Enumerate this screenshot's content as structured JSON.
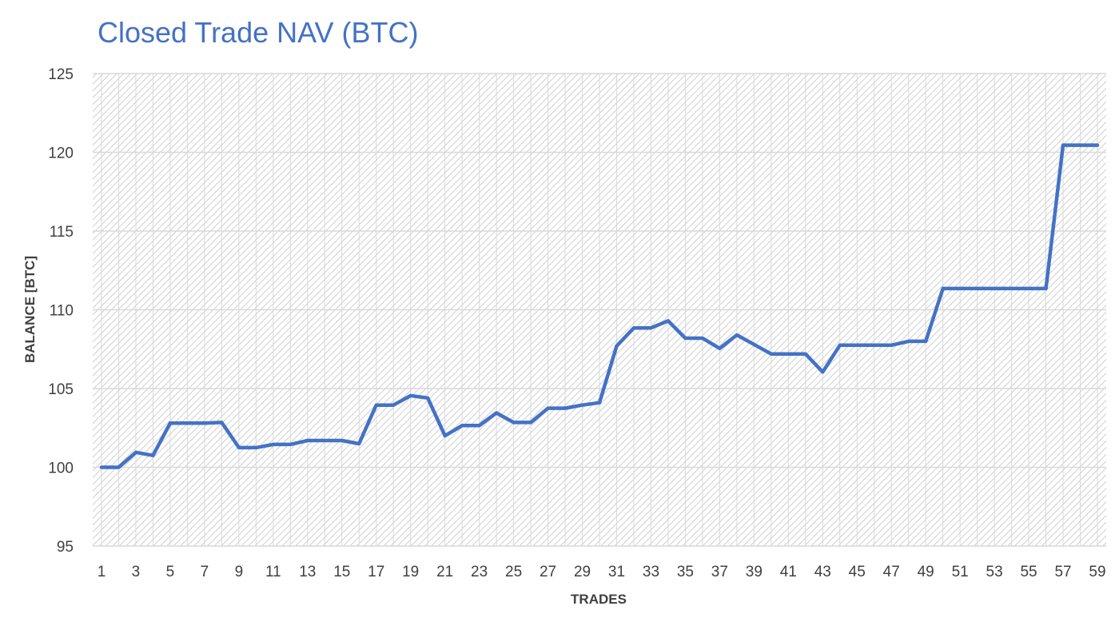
{
  "chart_data": {
    "type": "line",
    "title": "Closed Trade NAV (BTC)",
    "xlabel": "TRADES",
    "ylabel": "BALANCE [BTC]",
    "ylim": [
      95,
      125
    ],
    "yticks": [
      95,
      100,
      105,
      110,
      115,
      120,
      125
    ],
    "xlim": [
      1,
      59
    ],
    "xticks": [
      1,
      3,
      5,
      7,
      9,
      11,
      13,
      15,
      17,
      19,
      21,
      23,
      25,
      27,
      29,
      31,
      33,
      35,
      37,
      39,
      41,
      43,
      45,
      47,
      49,
      51,
      53,
      55,
      57,
      59
    ],
    "grid": true,
    "legend": "none",
    "colors": {
      "line": "#4472c4",
      "title": "#4472c4",
      "grid": "#d9d9d9",
      "hatch": "#c8c8c8",
      "text": "#404040"
    },
    "series": [
      {
        "x": [
          1,
          2,
          3,
          4,
          5,
          6,
          7,
          8,
          9,
          10,
          11,
          12,
          13,
          14,
          15,
          16,
          17,
          18,
          19,
          20,
          21,
          22,
          23,
          24,
          25,
          26,
          27,
          28,
          29,
          30,
          31,
          32,
          33,
          34,
          35,
          36,
          37,
          38,
          39,
          40,
          41,
          42,
          43,
          44,
          45,
          46,
          47,
          48,
          49,
          50,
          51,
          52,
          53,
          54,
          55,
          56,
          57,
          58,
          59
        ],
        "values": [
          100.0,
          100.0,
          100.95,
          100.75,
          102.8,
          102.8,
          102.8,
          102.85,
          101.25,
          101.25,
          101.45,
          101.45,
          101.7,
          101.7,
          101.7,
          101.5,
          103.95,
          103.95,
          104.55,
          104.4,
          102.0,
          102.65,
          102.65,
          103.45,
          102.85,
          102.85,
          103.75,
          103.75,
          103.95,
          104.1,
          107.7,
          108.85,
          108.85,
          109.3,
          108.2,
          108.2,
          107.55,
          108.4,
          107.8,
          107.2,
          107.2,
          107.2,
          106.05,
          107.75,
          107.75,
          107.75,
          107.75,
          108.0,
          108.0,
          111.35,
          111.35,
          111.35,
          111.35,
          111.35,
          111.35,
          111.35,
          120.45,
          120.45,
          120.45
        ]
      }
    ]
  }
}
